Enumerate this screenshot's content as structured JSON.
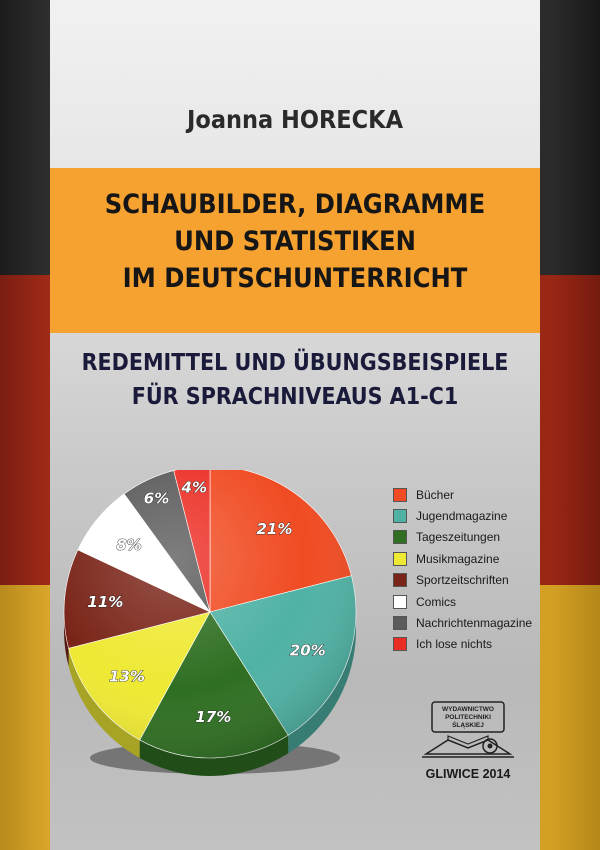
{
  "cover": {
    "author": "Joanna HORECKA",
    "title": "SCHAUBILDER, DIAGRAMME\nUND STATISTIKEN\nIM DEUTSCHUNTERRICHT",
    "subtitle": "REDEMITTEL UND ÜBUNGSBEISPIELE\nFÜR SPRACHNIVEAUS A1-C1",
    "publisher_logo": {
      "text_lines": [
        "WYDAWNICTWO",
        "POLITECHNIKI",
        "ŚLĄSKIEJ"
      ]
    },
    "place_year": "GLIWICE 2014",
    "colors": {
      "black_band": "#2b2b2b",
      "red_band": "#9a2614",
      "gold_band": "#d4a023",
      "title_box": "#f6a230"
    }
  },
  "chart_data": {
    "type": "pie",
    "title": "",
    "slices": [
      {
        "name": "Bücher",
        "value": 21,
        "label": "21%",
        "color": "#f04b22"
      },
      {
        "name": "Jugendmagazine",
        "value": 20,
        "label": "20%",
        "color": "#4fb2a4"
      },
      {
        "name": "Tageszeitungen",
        "value": 17,
        "label": "17%",
        "color": "#2f6f22"
      },
      {
        "name": "Musikmagazine",
        "value": 13,
        "label": "13%",
        "color": "#eee933"
      },
      {
        "name": "Sportzeitschriften",
        "value": 11,
        "label": "11%",
        "color": "#7a2418"
      },
      {
        "name": "Comics",
        "value": 8,
        "label": "8%",
        "color": "#ffffff"
      },
      {
        "name": "Nachrichtenmagazine",
        "value": 6,
        "label": "6%",
        "color": "#5a5a5a"
      },
      {
        "name": "Ich lose nichts",
        "value": 4,
        "label": "4%",
        "color": "#ec2d24"
      }
    ],
    "legend_position": "right"
  }
}
